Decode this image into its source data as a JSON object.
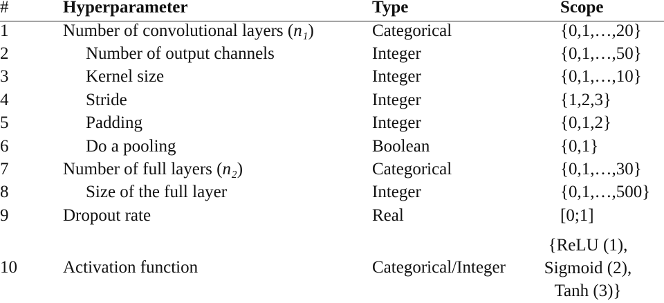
{
  "header": {
    "num": "#",
    "hyperparameter": "Hyperparameter",
    "type": "Type",
    "scope": "Scope"
  },
  "rows": [
    {
      "num": "1",
      "name_prefix": "Number of convolutional layers (",
      "name_var": "n₁",
      "name_suffix": ")",
      "type": "Categorical",
      "scope": "{0,1,…,20}"
    },
    {
      "num": "2",
      "name": "Number of output channels",
      "type": "Integer",
      "scope": "{0,1,…,50}"
    },
    {
      "num": "3",
      "name": "Kernel size",
      "type": "Integer",
      "scope": "{0,1,…,10}"
    },
    {
      "num": "4",
      "name": "Stride",
      "type": "Integer",
      "scope": "{1,2,3}"
    },
    {
      "num": "5",
      "name": "Padding",
      "type": "Integer",
      "scope": "{0,1,2}"
    },
    {
      "num": "6",
      "name": "Do a pooling",
      "type": "Boolean",
      "scope": "{0,1}"
    },
    {
      "num": "7",
      "name_prefix": "Number of full layers (",
      "name_var": "n₂",
      "name_suffix": ")",
      "type": "Categorical",
      "scope": "{0,1,…,30}"
    },
    {
      "num": "8",
      "name": "Size of the full layer",
      "type": "Integer",
      "scope": "{0,1,…,500}"
    },
    {
      "num": "9",
      "name": "Dropout rate",
      "type": "Real",
      "scope": "[0;1]"
    },
    {
      "num": "10",
      "name": "Activation function",
      "type": "Categorical/Integer",
      "scope_lines": [
        "{ReLU (1),",
        "Sigmoid (2),",
        "Tanh (3)}"
      ]
    }
  ]
}
